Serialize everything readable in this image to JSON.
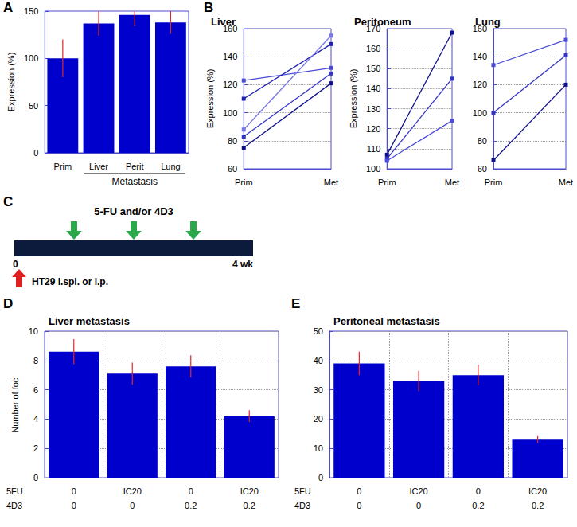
{
  "chart_data": [
    {
      "panel": "A",
      "type": "bar",
      "y_label": "Expression (%)",
      "categories": [
        "Prim",
        "Liver",
        "Perit",
        "Lung"
      ],
      "annotation": "Metastasis",
      "values": [
        100,
        137,
        146,
        138
      ],
      "errors": [
        20,
        13,
        12,
        12
      ],
      "color": "#0000cc",
      "ylim": [
        0,
        150
      ],
      "yticks": [
        0,
        50,
        100,
        150
      ],
      "grid": false
    },
    {
      "panel": "B",
      "type": "line",
      "title": "Liver",
      "y_label": "Expression (%)",
      "categories": [
        "Prim",
        "Met"
      ],
      "marker": "square",
      "series": [
        {
          "color": "#4b4bd8",
          "values": [
            123,
            132
          ]
        },
        {
          "color": "#2020b0",
          "values": [
            110,
            149
          ]
        },
        {
          "color": "#7777e6",
          "values": [
            88,
            155
          ]
        },
        {
          "color": "#3333c4",
          "values": [
            83,
            128
          ]
        },
        {
          "color": "#10108a",
          "values": [
            75,
            121
          ]
        }
      ],
      "ylim": [
        60,
        160
      ],
      "yticks": [
        60,
        80,
        100,
        120,
        140,
        160
      ],
      "grid": true
    },
    {
      "type": "line",
      "title": "Peritoneum",
      "y_label": "Expression (%)",
      "categories": [
        "Prim",
        "Met"
      ],
      "marker": "square",
      "series": [
        {
          "color": "#10108a",
          "values": [
            107,
            168
          ]
        },
        {
          "color": "#3333c4",
          "values": [
            105,
            145
          ]
        },
        {
          "color": "#4b4bd8",
          "values": [
            104,
            124
          ]
        }
      ],
      "ylim": [
        100,
        170
      ],
      "yticks": [
        100,
        110,
        120,
        130,
        140,
        150,
        160,
        170
      ],
      "grid": true
    },
    {
      "type": "line",
      "title": "Lung",
      "categories": [
        "Prim",
        "Met"
      ],
      "marker": "square",
      "series": [
        {
          "color": "#4b4bd8",
          "values": [
            134,
            152
          ]
        },
        {
          "color": "#3333c4",
          "values": [
            100,
            141
          ]
        },
        {
          "color": "#10108a",
          "values": [
            66,
            120
          ]
        }
      ],
      "ylim": [
        60,
        160
      ],
      "yticks": [
        60,
        80,
        100,
        120,
        140,
        160
      ],
      "grid": true
    },
    {
      "panel": "D",
      "type": "bar",
      "title": "Liver metastasis",
      "y_label": "Number of foci",
      "row_labels": [
        "5FU",
        "4D3"
      ],
      "categories": [
        [
          "0",
          "0"
        ],
        [
          "IC20",
          "0"
        ],
        [
          "0",
          "0.2"
        ],
        [
          "IC20",
          "0.2"
        ]
      ],
      "values": [
        8.6,
        7.1,
        7.6,
        4.2
      ],
      "errors": [
        0.85,
        0.75,
        0.75,
        0.4
      ],
      "color": "#0000cc",
      "ylim": [
        0,
        10
      ],
      "yticks": [
        0,
        2,
        4,
        6,
        8,
        10
      ],
      "grid": true
    },
    {
      "panel": "E",
      "type": "bar",
      "title": "Peritoneal metastasis",
      "row_labels": [
        "5FU",
        "4D3"
      ],
      "categories": [
        [
          "0",
          "0"
        ],
        [
          "IC20",
          "0"
        ],
        [
          "0",
          "0.2"
        ],
        [
          "IC20",
          "0.2"
        ]
      ],
      "values": [
        39,
        33,
        35,
        13
      ],
      "errors": [
        4,
        3.5,
        3.5,
        1.2
      ],
      "color": "#0000cc",
      "ylim": [
        0,
        50
      ],
      "yticks": [
        0,
        10,
        20,
        30,
        40,
        50
      ],
      "grid": true
    }
  ],
  "diagram": {
    "panel": "C",
    "treatment_label": "5-FU and/or 4D3",
    "injection_label": "HT29 i.spl. or i.p.",
    "treatment_weeks": [
      1,
      2,
      3
    ],
    "injection_week": 0,
    "xlim": [
      0,
      4
    ],
    "xticks": [
      0,
      {
        "value": 4,
        "label": "4 wk"
      }
    ]
  }
}
